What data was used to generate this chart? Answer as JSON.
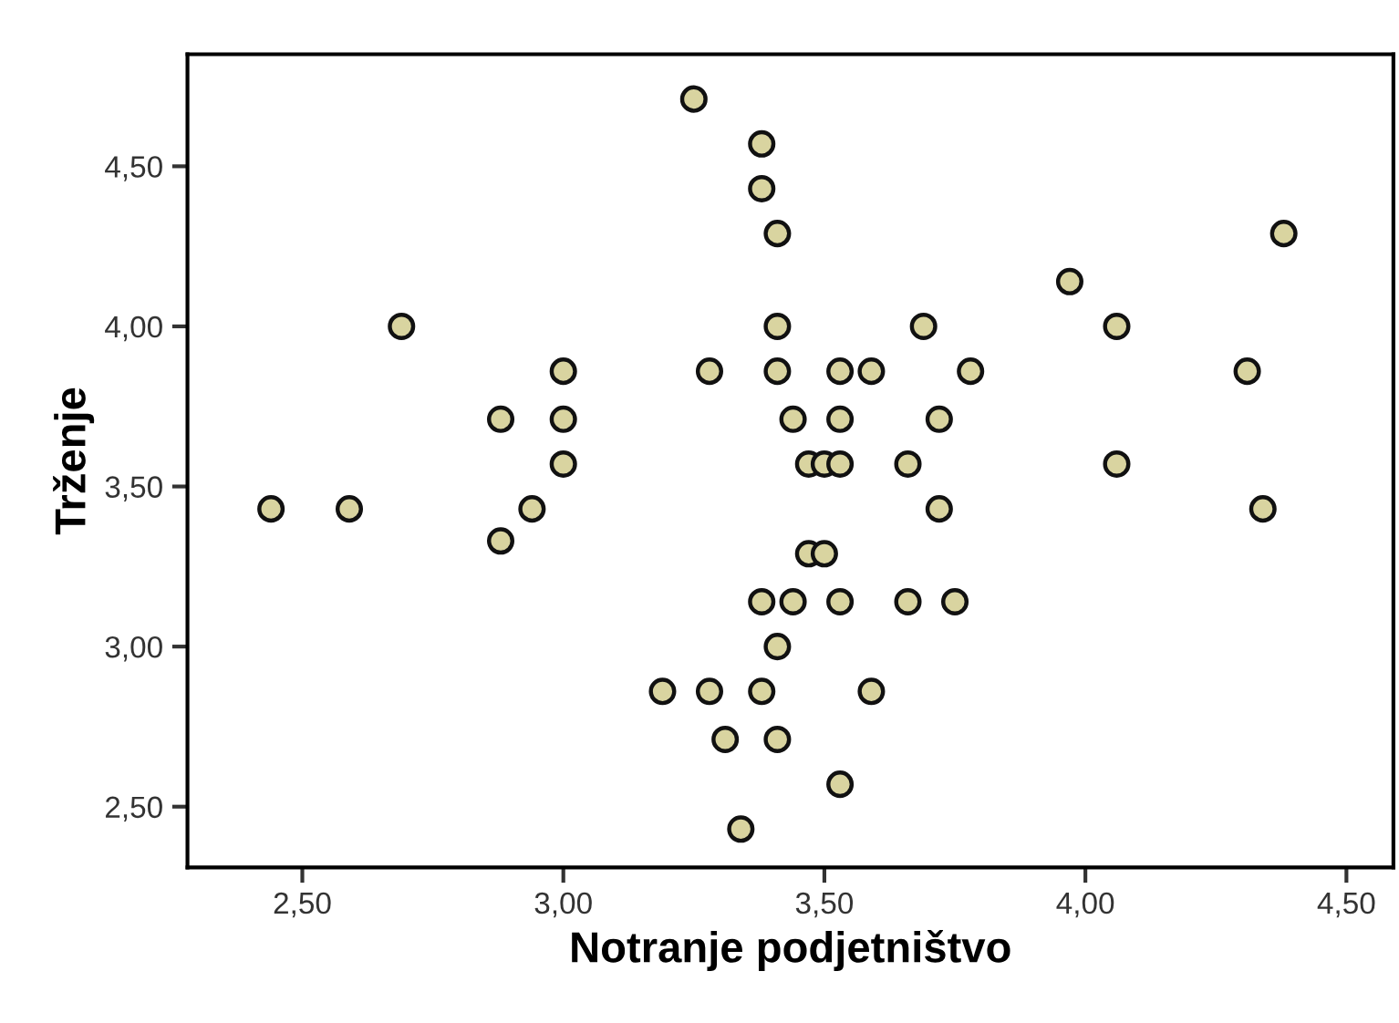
{
  "chart_data": {
    "type": "scatter",
    "xlabel": "Notranje podjetništvo",
    "ylabel": "Trženje",
    "xlim": [
      2.28,
      4.59
    ],
    "ylim": [
      2.31,
      4.85
    ],
    "xticks": [
      {
        "value": 2.5,
        "label": "2,50"
      },
      {
        "value": 3.0,
        "label": "3,00"
      },
      {
        "value": 3.5,
        "label": "3,50"
      },
      {
        "value": 4.0,
        "label": "4,00"
      },
      {
        "value": 4.5,
        "label": "4,50"
      }
    ],
    "yticks": [
      {
        "value": 2.5,
        "label": "2,50"
      },
      {
        "value": 3.0,
        "label": "3,00"
      },
      {
        "value": 3.5,
        "label": "3,50"
      },
      {
        "value": 4.0,
        "label": "4,00"
      },
      {
        "value": 4.5,
        "label": "4,50"
      }
    ],
    "grid": false,
    "marker": "circle",
    "series": [
      {
        "color": "#d9d4a0",
        "x": [
          2.44,
          2.59,
          2.69,
          2.88,
          2.88,
          2.94,
          3.0,
          3.0,
          3.0,
          3.25,
          3.38,
          3.38,
          3.41,
          3.41,
          3.28,
          3.41,
          3.53,
          3.59,
          3.78,
          3.44,
          3.53,
          3.72,
          3.47,
          3.5,
          3.53,
          3.66,
          4.06,
          3.72,
          4.34,
          3.47,
          3.5,
          3.38,
          3.44,
          3.53,
          3.66,
          3.75,
          3.41,
          3.19,
          3.28,
          3.38,
          3.59,
          3.31,
          3.41,
          3.53,
          3.34,
          3.97,
          4.06,
          4.31,
          4.38,
          3.69
        ],
        "values": [
          3.43,
          3.43,
          4.0,
          3.71,
          3.33,
          3.43,
          3.86,
          3.71,
          3.57,
          4.71,
          4.57,
          4.43,
          4.29,
          4.0,
          3.86,
          3.86,
          3.86,
          3.86,
          3.86,
          3.71,
          3.71,
          3.71,
          3.57,
          3.57,
          3.57,
          3.57,
          3.57,
          3.43,
          3.43,
          3.29,
          3.29,
          3.14,
          3.14,
          3.14,
          3.14,
          3.14,
          3.0,
          2.86,
          2.86,
          2.86,
          2.86,
          2.71,
          2.71,
          2.57,
          2.43,
          4.14,
          4.0,
          3.86,
          4.29,
          4.0
        ]
      }
    ]
  }
}
